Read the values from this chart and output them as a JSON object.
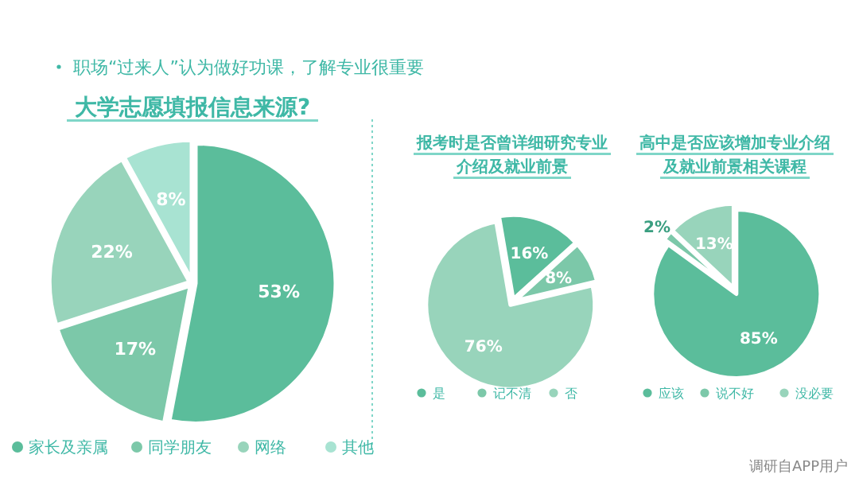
{
  "chart_data": [
    {
      "type": "pie",
      "title": "大学志愿填报信息来源?",
      "annotations": [
        "职场“过来人”认为做好功课，了解专业很重要"
      ],
      "categories": [
        "家长及亲属",
        "同学朋友",
        "网络",
        "其他"
      ],
      "values": [
        53,
        17,
        22,
        8
      ],
      "value_labels": [
        "53%",
        "17%",
        "22%",
        "8%"
      ],
      "colors": [
        "#5bbd9b",
        "#7cc8a9",
        "#98d4bb",
        "#a8e3d2"
      ],
      "legend": "bottom"
    },
    {
      "type": "pie",
      "title": "报考时是否曾详细研究专业介绍及就业前景",
      "categories": [
        "是",
        "记不清",
        "否"
      ],
      "values": [
        16,
        8,
        76
      ],
      "value_labels": [
        "16%",
        "8%",
        "76%"
      ],
      "colors": [
        "#5bbd9b",
        "#7cc8a9",
        "#98d4bb"
      ],
      "legend": "bottom"
    },
    {
      "type": "pie",
      "title": "高中是否应该增加专业介绍及就业前景相关课程",
      "annotations": [
        "调研自APP用户"
      ],
      "categories": [
        "应该",
        "说不好",
        "没必要"
      ],
      "values": [
        85,
        2,
        13
      ],
      "value_labels": [
        "85%",
        "2%",
        "13%"
      ],
      "colors": [
        "#5bbd9b",
        "#7cc8a9",
        "#98d4bb"
      ],
      "legend": "bottom"
    }
  ]
}
